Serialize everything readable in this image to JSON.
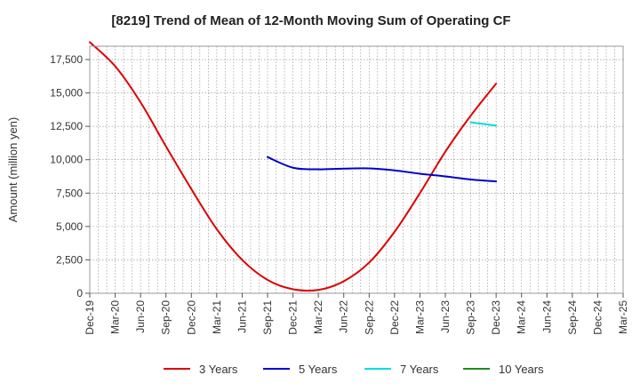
{
  "chart_data": {
    "type": "line",
    "title": "[8219]  Trend of Mean of 12-Month Moving Sum of Operating CF",
    "xlabel": "",
    "ylabel": "Amount (million yen)",
    "ylim": [
      0,
      18500
    ],
    "yticks": [
      0,
      2500,
      5000,
      7500,
      10000,
      12500,
      15000,
      17500
    ],
    "ytick_labels": [
      "0",
      "2,500",
      "5,000",
      "7,500",
      "10,000",
      "12,500",
      "15,000",
      "17,500"
    ],
    "x_tick_labels": [
      "Dec-19",
      "Mar-20",
      "Jun-20",
      "Sep-20",
      "Dec-20",
      "Mar-21",
      "Jun-21",
      "Sep-21",
      "Dec-21",
      "Mar-22",
      "Jun-22",
      "Sep-22",
      "Dec-22",
      "Mar-23",
      "Jun-23",
      "Sep-23",
      "Dec-23",
      "Mar-24",
      "Jun-24",
      "Sep-24",
      "Dec-24",
      "Mar-25"
    ],
    "grid": true,
    "legend_position": "bottom",
    "series": [
      {
        "name": "3 Years",
        "color": "#dd0000",
        "values": [
          18800,
          17000,
          14300,
          11000,
          7800,
          4800,
          2500,
          1000,
          300,
          250,
          900,
          2300,
          4600,
          7500,
          10600,
          13300,
          15700,
          null,
          null,
          null,
          null,
          null
        ]
      },
      {
        "name": "5 Years",
        "color": "#0000cc",
        "values": [
          null,
          null,
          null,
          null,
          null,
          null,
          null,
          10200,
          9400,
          9280,
          9330,
          9350,
          9200,
          8950,
          8750,
          8520,
          8380,
          null,
          null,
          null,
          null,
          null
        ]
      },
      {
        "name": "7 Years",
        "color": "#00dddd",
        "values": [
          null,
          null,
          null,
          null,
          null,
          null,
          null,
          null,
          null,
          null,
          null,
          null,
          null,
          null,
          null,
          12800,
          12550,
          null,
          null,
          null,
          null,
          null
        ]
      },
      {
        "name": "10 Years",
        "color": "#228822",
        "values": [
          null,
          null,
          null,
          null,
          null,
          null,
          null,
          null,
          null,
          null,
          null,
          null,
          null,
          null,
          null,
          null,
          null,
          null,
          null,
          null,
          null,
          null
        ]
      }
    ]
  }
}
